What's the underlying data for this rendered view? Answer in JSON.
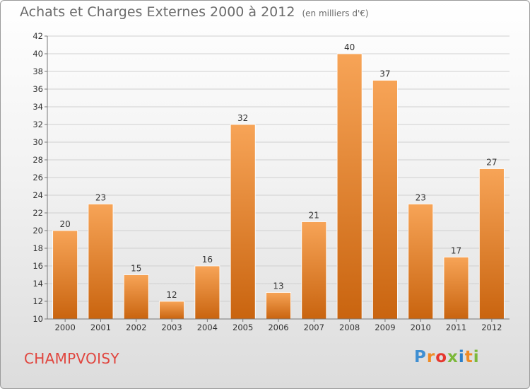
{
  "header": {
    "title": "Achats et Charges Externes 2000 à 2012",
    "unit": "(en milliers d'€)"
  },
  "footer": {
    "commune": "CHAMPVOISY",
    "logo_letters": [
      "P",
      "r",
      "o",
      "x",
      "i",
      "t",
      "i"
    ],
    "logo_colors": [
      "#3f8fd2",
      "#f08a24",
      "#e6372e",
      "#7cb83a",
      "#2c7fc9",
      "#f08a24",
      "#7cb83a"
    ]
  },
  "colors": {
    "bar_top": "#f7a457",
    "bar_bottom": "#c9640f",
    "grid": "#d0d0d0",
    "axis_text": "#333333",
    "commune": "#e0463f"
  },
  "chart_data": {
    "type": "bar",
    "categories": [
      "2000",
      "2001",
      "2002",
      "2003",
      "2004",
      "2005",
      "2006",
      "2007",
      "2008",
      "2009",
      "2010",
      "2011",
      "2012"
    ],
    "values": [
      20,
      23,
      15,
      12,
      16,
      32,
      13,
      21,
      40,
      37,
      23,
      17,
      27
    ],
    "ylim": [
      10,
      42
    ],
    "yticks": [
      10,
      12,
      14,
      16,
      18,
      20,
      22,
      24,
      26,
      28,
      30,
      32,
      34,
      36,
      38,
      40,
      42
    ],
    "grid": true,
    "data_labels": true
  }
}
